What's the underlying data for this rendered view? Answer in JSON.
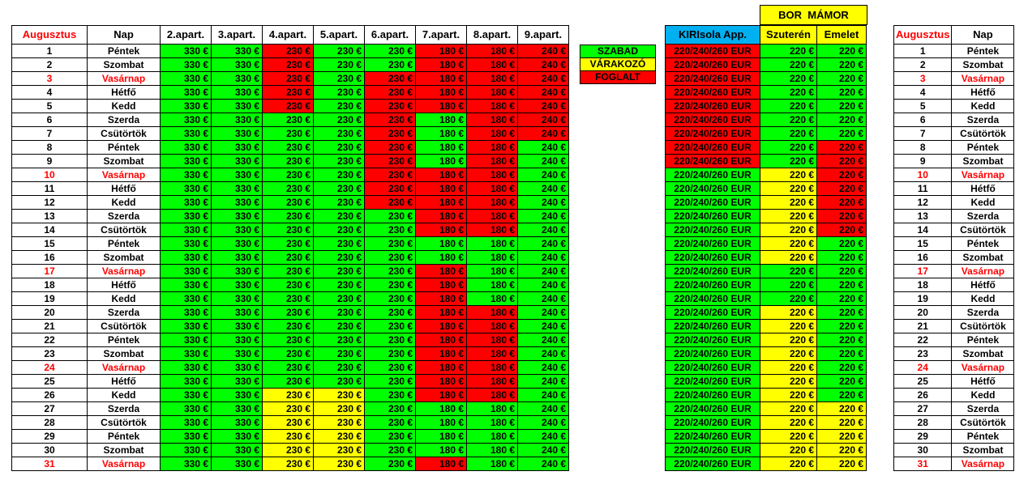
{
  "header": {
    "month": "Augusztus",
    "day": "Nap",
    "apartments": [
      "2.apart.",
      "3.apart.",
      "4.apart.",
      "5.apart.",
      "6.apart.",
      "7.apart.",
      "8.apart.",
      "9.apart."
    ]
  },
  "legend": [
    {
      "label": "SZABAD",
      "color": "#00ff00"
    },
    {
      "label": "VÁRAKOZÓ",
      "color": "#ffff00"
    },
    {
      "label": "FOGLALT",
      "color": "#ff0000"
    }
  ],
  "bor_mamor": {
    "title": "BOR  MÁMOR",
    "col_kiri": "KIRIsola App.",
    "col_szuteren": "Szuterén",
    "col_emelet": "Emelet"
  },
  "prices": [
    "330 €",
    "330 €",
    "230 €",
    "230 €",
    "230 €",
    "180 €",
    "180 €",
    "240 €"
  ],
  "right_prices": {
    "kiri": "220/240/260 EUR",
    "szuteren": "220 €",
    "emelet": "220 €"
  },
  "status_codes": {
    "G": "#00ff00",
    "Y": "#ffff00",
    "R": "#ff0000"
  },
  "days": [
    {
      "n": "1",
      "name": "Péntek",
      "sun": false,
      "s": "GGRGGRRR",
      "r": "RGG"
    },
    {
      "n": "2",
      "name": "Szombat",
      "sun": false,
      "s": "GGRGGRRR",
      "r": "RGG"
    },
    {
      "n": "3",
      "name": "Vasárnap",
      "sun": true,
      "s": "GGRGRRRR",
      "r": "RGG"
    },
    {
      "n": "4",
      "name": "Hétfő",
      "sun": false,
      "s": "GGRGRRRR",
      "r": "RGG"
    },
    {
      "n": "5",
      "name": "Kedd",
      "sun": false,
      "s": "GGRGRRRR",
      "r": "RGG"
    },
    {
      "n": "6",
      "name": "Szerda",
      "sun": false,
      "s": "GGGGRGRR",
      "r": "RGG"
    },
    {
      "n": "7",
      "name": "Csütörtök",
      "sun": false,
      "s": "GGGGRGRR",
      "r": "RGG"
    },
    {
      "n": "8",
      "name": "Péntek",
      "sun": false,
      "s": "GGGGRGRG",
      "r": "RGR"
    },
    {
      "n": "9",
      "name": "Szombat",
      "sun": false,
      "s": "GGGGRGRG",
      "r": "RGR"
    },
    {
      "n": "10",
      "name": "Vasárnap",
      "sun": true,
      "s": "GGGGRRRG",
      "r": "GYR"
    },
    {
      "n": "11",
      "name": "Hétfő",
      "sun": false,
      "s": "GGGGRRRG",
      "r": "GYR"
    },
    {
      "n": "12",
      "name": "Kedd",
      "sun": false,
      "s": "GGGGRRRG",
      "r": "GYR"
    },
    {
      "n": "13",
      "name": "Szerda",
      "sun": false,
      "s": "GGGGGRRG",
      "r": "GYR"
    },
    {
      "n": "14",
      "name": "Csütörtök",
      "sun": false,
      "s": "GGGGGRRG",
      "r": "GYR"
    },
    {
      "n": "15",
      "name": "Péntek",
      "sun": false,
      "s": "GGGGGGGG",
      "r": "GYG"
    },
    {
      "n": "16",
      "name": "Szombat",
      "sun": false,
      "s": "GGGGGGGG",
      "r": "GYG"
    },
    {
      "n": "17",
      "name": "Vasárnap",
      "sun": true,
      "s": "GGGGGRGG",
      "r": "GGG"
    },
    {
      "n": "18",
      "name": "Hétfő",
      "sun": false,
      "s": "GGGGGRGG",
      "r": "GGG"
    },
    {
      "n": "19",
      "name": "Kedd",
      "sun": false,
      "s": "GGGGGRGG",
      "r": "GGG"
    },
    {
      "n": "20",
      "name": "Szerda",
      "sun": false,
      "s": "GGGGGRRG",
      "r": "GYG"
    },
    {
      "n": "21",
      "name": "Csütörtök",
      "sun": false,
      "s": "GGGGGRRG",
      "r": "GYG"
    },
    {
      "n": "22",
      "name": "Péntek",
      "sun": false,
      "s": "GGGGGRRG",
      "r": "GYG"
    },
    {
      "n": "23",
      "name": "Szombat",
      "sun": false,
      "s": "GGGGGRRG",
      "r": "GYG"
    },
    {
      "n": "24",
      "name": "Vasárnap",
      "sun": true,
      "s": "GGGGGRRG",
      "r": "GYG"
    },
    {
      "n": "25",
      "name": "Hétfő",
      "sun": false,
      "s": "GGGGGRRG",
      "r": "GYG"
    },
    {
      "n": "26",
      "name": "Kedd",
      "sun": false,
      "s": "GGYYGRRG",
      "r": "GYG"
    },
    {
      "n": "27",
      "name": "Szerda",
      "sun": false,
      "s": "GGYYGGGG",
      "r": "GYY"
    },
    {
      "n": "28",
      "name": "Csütörtök",
      "sun": false,
      "s": "GGYYGGGG",
      "r": "GYY"
    },
    {
      "n": "29",
      "name": "Péntek",
      "sun": false,
      "s": "GGYYGGGG",
      "r": "GYY"
    },
    {
      "n": "30",
      "name": "Szombat",
      "sun": false,
      "s": "GGYYGGGG",
      "r": "GYY"
    },
    {
      "n": "31",
      "name": "Vasárnap",
      "sun": true,
      "s": "GGYYGRGG",
      "r": "GYY"
    }
  ]
}
